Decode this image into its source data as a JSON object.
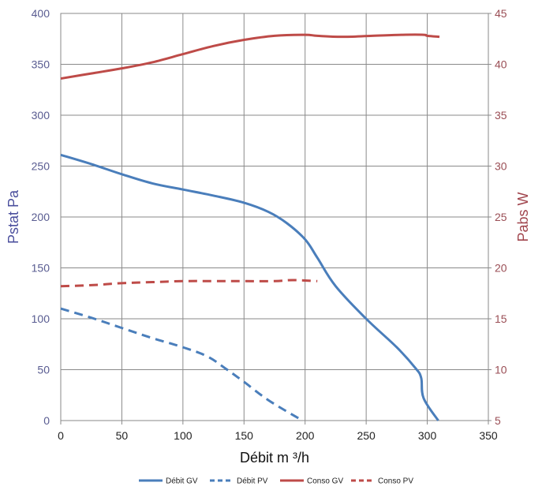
{
  "chart_data": {
    "type": "line",
    "xlabel": "Débit m ³/h",
    "ylabel_left": "Pstat Pa",
    "ylabel_right": "Pabs W",
    "xlim": [
      0,
      350
    ],
    "ylim_left": [
      0,
      400
    ],
    "ylim_right": [
      5,
      45
    ],
    "x_ticks": [
      "0",
      "50",
      "100",
      "150",
      "200",
      "250",
      "300",
      "350"
    ],
    "y_left_ticks": [
      "0",
      "50",
      "100",
      "150",
      "200",
      "250",
      "300",
      "350",
      "400"
    ],
    "y_right_ticks": [
      "5",
      "10",
      "15",
      "20",
      "25",
      "30",
      "35",
      "40",
      "45"
    ],
    "grid": true,
    "legend_position": "bottom",
    "series": [
      {
        "name": "Débit GV",
        "axis": "left",
        "color": "#4a7ebb",
        "dash": "solid",
        "points": [
          [
            0,
            261
          ],
          [
            25,
            252
          ],
          [
            50,
            242
          ],
          [
            75,
            233
          ],
          [
            100,
            227
          ],
          [
            125,
            221
          ],
          [
            150,
            214
          ],
          [
            170,
            205
          ],
          [
            185,
            194
          ],
          [
            200,
            178
          ],
          [
            210,
            160
          ],
          [
            225,
            132
          ],
          [
            250,
            100
          ],
          [
            275,
            72
          ],
          [
            290,
            52
          ],
          [
            295,
            42
          ],
          [
            297,
            22
          ],
          [
            309,
            0
          ]
        ]
      },
      {
        "name": "Débit PV",
        "axis": "left",
        "color": "#4a7ebb",
        "dash": "dashed",
        "points": [
          [
            0,
            110
          ],
          [
            25,
            101
          ],
          [
            50,
            91
          ],
          [
            75,
            81
          ],
          [
            100,
            72
          ],
          [
            120,
            63
          ],
          [
            135,
            51
          ],
          [
            150,
            38
          ],
          [
            170,
            20
          ],
          [
            195,
            2
          ]
        ]
      },
      {
        "name": "Conso GV",
        "axis": "right",
        "color": "#be4b48",
        "dash": "solid",
        "points": [
          [
            0,
            38.6
          ],
          [
            25,
            39.1
          ],
          [
            50,
            39.6
          ],
          [
            75,
            40.2
          ],
          [
            100,
            41.0
          ],
          [
            125,
            41.8
          ],
          [
            150,
            42.4
          ],
          [
            175,
            42.8
          ],
          [
            200,
            42.9
          ],
          [
            210,
            42.8
          ],
          [
            230,
            42.7
          ],
          [
            255,
            42.8
          ],
          [
            280,
            42.9
          ],
          [
            297,
            42.9
          ],
          [
            300,
            42.8
          ],
          [
            310,
            42.7
          ]
        ]
      },
      {
        "name": "Conso PV",
        "axis": "right",
        "color": "#be4b48",
        "dash": "dashed",
        "points": [
          [
            0,
            18.2
          ],
          [
            25,
            18.3
          ],
          [
            50,
            18.5
          ],
          [
            75,
            18.6
          ],
          [
            100,
            18.7
          ],
          [
            125,
            18.7
          ],
          [
            150,
            18.7
          ],
          [
            175,
            18.7
          ],
          [
            190,
            18.8
          ],
          [
            210,
            18.7
          ]
        ]
      }
    ]
  }
}
